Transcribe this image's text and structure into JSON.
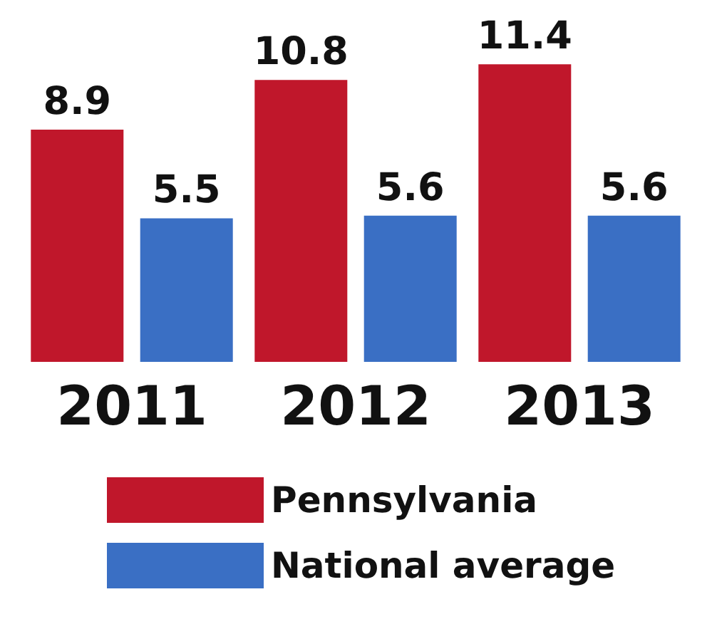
{
  "chart_data": {
    "type": "bar",
    "categories": [
      "2011",
      "2012",
      "2013"
    ],
    "series": [
      {
        "name": "Pennsylvania",
        "color": "#c0172b",
        "values": [
          8.9,
          10.8,
          11.4
        ]
      },
      {
        "name": "National average",
        "color": "#3a6fc4",
        "values": [
          5.5,
          5.6,
          5.6
        ]
      }
    ],
    "data_labels": true,
    "legend": "bottom"
  }
}
